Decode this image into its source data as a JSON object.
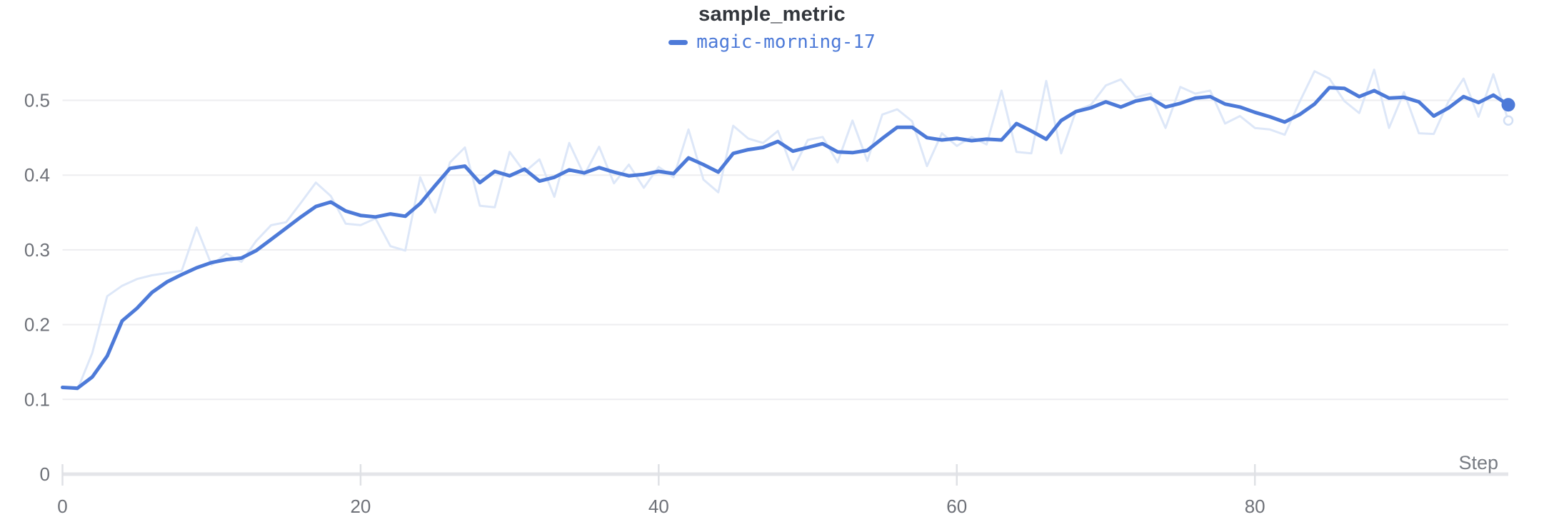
{
  "chart_data": {
    "type": "line",
    "title": "sample_metric",
    "legend_label": "magic-morning-17",
    "xlabel": "Step",
    "ylabel": "",
    "x_axis": {
      "tick_labels": [
        "0",
        "20",
        "40",
        "60",
        "80"
      ],
      "tick_values": [
        0,
        20,
        40,
        60,
        80
      ],
      "min": 0,
      "max": 97
    },
    "y_axis": {
      "tick_labels": [
        "0",
        "0.1",
        "0.2",
        "0.3",
        "0.4",
        "0.5"
      ],
      "tick_values": [
        0,
        0.1,
        0.2,
        0.3,
        0.4,
        0.5
      ],
      "min": 0,
      "max": 0.55
    },
    "grid": "horizontal-only",
    "legend_position": "top-center",
    "x_start": 0,
    "x_increment": 1,
    "series": [
      {
        "name": "magic-morning-17",
        "variant": "original",
        "end_marker": "hollow-dot",
        "values": [
          0.117,
          0.113,
          0.162,
          0.238,
          0.252,
          0.261,
          0.266,
          0.269,
          0.272,
          0.33,
          0.28,
          0.295,
          0.284,
          0.312,
          0.333,
          0.337,
          0.363,
          0.39,
          0.372,
          0.335,
          0.333,
          0.342,
          0.305,
          0.299,
          0.397,
          0.35,
          0.417,
          0.437,
          0.359,
          0.357,
          0.431,
          0.404,
          0.421,
          0.371,
          0.443,
          0.4,
          0.438,
          0.389,
          0.414,
          0.383,
          0.411,
          0.397,
          0.461,
          0.394,
          0.377,
          0.466,
          0.449,
          0.443,
          0.459,
          0.407,
          0.447,
          0.451,
          0.417,
          0.473,
          0.419,
          0.481,
          0.488,
          0.472,
          0.412,
          0.456,
          0.439,
          0.451,
          0.441,
          0.513,
          0.431,
          0.429,
          0.526,
          0.429,
          0.486,
          0.494,
          0.52,
          0.528,
          0.504,
          0.509,
          0.463,
          0.518,
          0.509,
          0.513,
          0.469,
          0.479,
          0.463,
          0.461,
          0.454,
          0.498,
          0.539,
          0.529,
          0.499,
          0.483,
          0.541,
          0.463,
          0.511,
          0.456,
          0.455,
          0.499,
          0.529,
          0.478,
          0.535,
          0.473
        ]
      },
      {
        "name": "magic-morning-17",
        "variant": "smoothed",
        "end_marker": "filled-dot",
        "values": [
          0.116,
          0.115,
          0.13,
          0.158,
          0.205,
          0.222,
          0.243,
          0.257,
          0.267,
          0.276,
          0.283,
          0.287,
          0.289,
          0.299,
          0.314,
          0.329,
          0.344,
          0.358,
          0.364,
          0.352,
          0.346,
          0.344,
          0.348,
          0.345,
          0.362,
          0.386,
          0.409,
          0.412,
          0.39,
          0.405,
          0.399,
          0.408,
          0.392,
          0.397,
          0.407,
          0.403,
          0.41,
          0.404,
          0.399,
          0.401,
          0.405,
          0.402,
          0.423,
          0.414,
          0.404,
          0.429,
          0.434,
          0.437,
          0.445,
          0.432,
          0.437,
          0.442,
          0.431,
          0.43,
          0.433,
          0.449,
          0.464,
          0.464,
          0.45,
          0.447,
          0.449,
          0.446,
          0.448,
          0.447,
          0.469,
          0.459,
          0.448,
          0.473,
          0.485,
          0.49,
          0.498,
          0.491,
          0.499,
          0.503,
          0.491,
          0.496,
          0.503,
          0.505,
          0.495,
          0.491,
          0.484,
          0.478,
          0.471,
          0.481,
          0.495,
          0.517,
          0.516,
          0.505,
          0.513,
          0.503,
          0.504,
          0.498,
          0.479,
          0.49,
          0.505,
          0.497,
          0.507,
          0.494
        ]
      }
    ],
    "colors": {
      "line": "#4d7ad8",
      "line_faint": "#dde7f8",
      "faint_dot_stroke": "#d3e0f5",
      "grid": "#ededf0",
      "axis": "#e4e5e9",
      "tick_mark": "#dfe1e5",
      "tick_label": "#6e7178",
      "axis_label": "#787c83",
      "title": "#32363c"
    }
  }
}
